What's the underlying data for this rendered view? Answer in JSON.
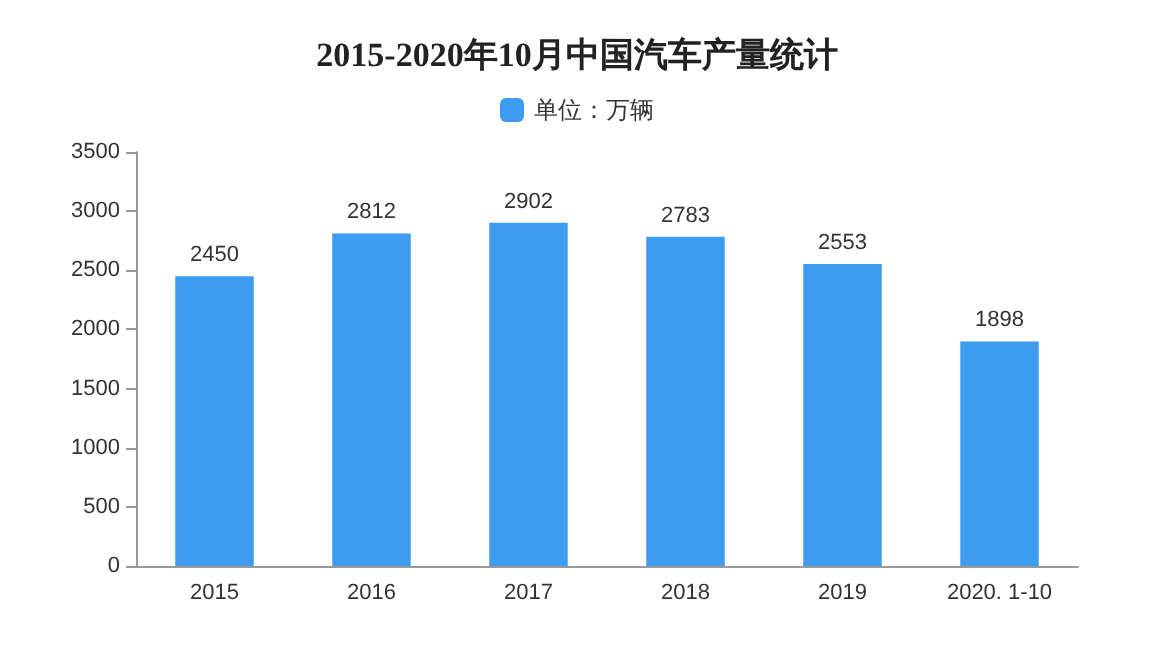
{
  "chart_data": {
    "type": "bar",
    "title": "2015-2020年10月中国汽车产量统计",
    "categories": [
      "2015",
      "2016",
      "2017",
      "2018",
      "2019",
      "2020. 1-10"
    ],
    "series": [
      {
        "name": "单位：万辆",
        "color": "#3d9cf0",
        "values": [
          2450,
          2812,
          2902,
          2783,
          2553,
          1898
        ]
      }
    ],
    "ylim": [
      0,
      3500
    ],
    "yticks": [
      0,
      500,
      1000,
      1500,
      2000,
      2500,
      3000,
      3500
    ],
    "data_labels": true,
    "legend": "top",
    "grid": false
  }
}
